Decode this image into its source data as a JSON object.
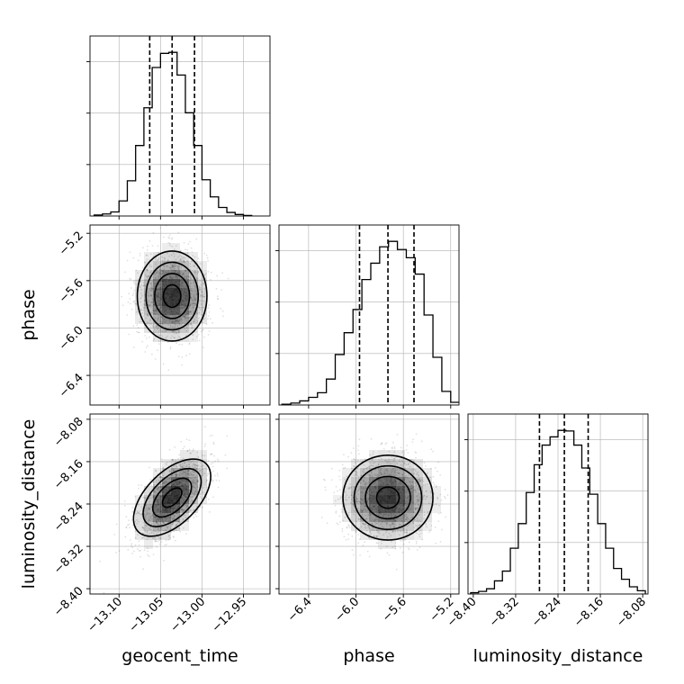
{
  "chart_data": [
    {
      "type": "histogram",
      "panel": "geocent_time-marginal",
      "xlim": [
        -13.135,
        -12.918
      ],
      "bins": [
        -13.13,
        -13.12,
        -13.11,
        -13.1,
        -13.09,
        -13.08,
        -13.07,
        -13.06,
        -13.05,
        -13.04,
        -13.03,
        -13.02,
        -13.01,
        -13.0,
        -12.99,
        -12.98,
        -12.97,
        -12.96,
        -12.95,
        -12.94
      ],
      "counts": [
        2,
        4,
        8,
        30,
        70,
        140,
        215,
        295,
        323,
        325,
        280,
        205,
        140,
        72,
        38,
        17,
        7,
        3,
        1
      ],
      "quantiles": [
        -13.063,
        -13.036,
        -13.009
      ],
      "grid": true
    },
    {
      "type": "histogram",
      "panel": "phase-marginal",
      "xlim": [
        -6.65,
        -5.13
      ],
      "bins": [
        -6.625,
        -6.55,
        -6.475,
        -6.4,
        -6.325,
        -6.25,
        -6.175,
        -6.1,
        -6.025,
        -5.95,
        -5.875,
        -5.8,
        -5.725,
        -5.65,
        -5.575,
        -5.5,
        -5.425,
        -5.35,
        -5.275,
        -5.2,
        -5.125
      ],
      "counts": [
        3,
        7,
        15,
        28,
        45,
        95,
        185,
        265,
        350,
        460,
        520,
        580,
        600,
        570,
        540,
        480,
        330,
        175,
        50,
        10
      ],
      "quantiles": [
        -5.97,
        -5.73,
        -5.51
      ],
      "grid": true
    },
    {
      "type": "histogram",
      "panel": "luminosity_distance-marginal",
      "xlim": [
        -8.41,
        -8.07
      ],
      "bins": [
        -8.405,
        -8.39,
        -8.375,
        -8.36,
        -8.345,
        -8.33,
        -8.315,
        -8.3,
        -8.285,
        -8.27,
        -8.255,
        -8.24,
        -8.225,
        -8.21,
        -8.195,
        -8.18,
        -8.165,
        -8.15,
        -8.135,
        -8.12,
        -8.105,
        -8.09,
        -8.075
      ],
      "counts": [
        4,
        8,
        16,
        40,
        70,
        140,
        215,
        310,
        395,
        455,
        480,
        500,
        498,
        455,
        385,
        305,
        215,
        140,
        78,
        45,
        22,
        10
      ],
      "quantiles": [
        -8.275,
        -8.228,
        -8.183
      ],
      "grid": true
    },
    {
      "type": "scatter",
      "panel": "phase-vs-geocent_time",
      "x_param": "geocent_time",
      "y_param": "phase",
      "xlim": [
        -13.135,
        -12.918
      ],
      "ylim": [
        -6.65,
        -5.13
      ],
      "center": [
        -13.036,
        -5.73
      ],
      "spread": [
        0.021,
        0.19
      ],
      "correlation": 0.0,
      "contour_levels": 4,
      "grid": true
    },
    {
      "type": "scatter",
      "panel": "luminosity_distance-vs-geocent_time",
      "x_param": "geocent_time",
      "y_param": "luminosity_distance",
      "xlim": [
        -13.135,
        -12.918
      ],
      "ylim": [
        -8.41,
        -8.07
      ],
      "center": [
        -13.036,
        -8.228
      ],
      "spread": [
        0.021,
        0.04
      ],
      "correlation": 0.55,
      "contour_levels": 4,
      "grid": true
    },
    {
      "type": "scatter",
      "panel": "luminosity_distance-vs-phase",
      "x_param": "phase",
      "y_param": "luminosity_distance",
      "xlim": [
        -6.65,
        -5.13
      ],
      "ylim": [
        -8.41,
        -8.07
      ],
      "center": [
        -5.73,
        -8.228
      ],
      "spread": [
        0.19,
        0.04
      ],
      "correlation": 0.0,
      "contour_levels": 4,
      "grid": true
    }
  ],
  "axes": {
    "geocent_time": {
      "label": "geocent_time",
      "ticks": [
        -13.1,
        -13.05,
        -13.0,
        -12.95
      ],
      "tick_labels": [
        "−13.10",
        "−13.05",
        "−13.00",
        "−12.95"
      ]
    },
    "phase": {
      "label": "phase",
      "ticks": [
        -6.4,
        -6.0,
        -5.6,
        -5.2
      ],
      "tick_labels": [
        "−6.4",
        "−6.0",
        "−5.6",
        "−5.2"
      ]
    },
    "luminosity_distance": {
      "label": "luminosity_distance",
      "ticks": [
        -8.4,
        -8.32,
        -8.24,
        -8.16,
        -8.08
      ],
      "tick_labels": [
        "−8.40",
        "−8.32",
        "−8.24",
        "−8.16",
        "−8.08"
      ]
    }
  },
  "colors": {
    "grid": "#b0b0b0",
    "axes": "#000000",
    "scatter": "#000000",
    "density": "#000000"
  }
}
